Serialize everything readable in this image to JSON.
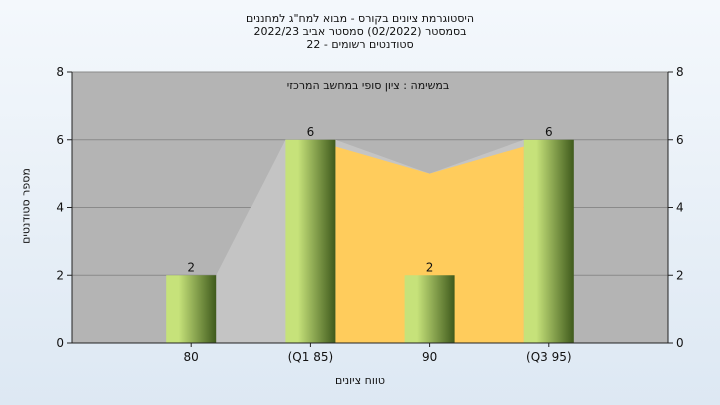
{
  "chart_data": {
    "type": "bar",
    "title_lines": [
      "היסטוגרמת ציונים בקורס - מבוא למח\"ג למחננים",
      "בסמסטר  (02/2022)  סמסטר אביב 2022/23",
      "סטודנטים רשומים - 22"
    ],
    "annotation": "במשימה : ציון סופי במחשב המרכזי",
    "xlabel": "טווח ציונים",
    "ylabel": "מספר סטודנטים",
    "categories": [
      "80",
      "(Q1 85)",
      "90",
      "(Q3 95)"
    ],
    "values": [
      2,
      6,
      2,
      6
    ],
    "data_labels": [
      "2",
      "6",
      "2",
      "6"
    ],
    "y_ticks": [
      "0",
      "2",
      "4",
      "6",
      "8"
    ],
    "ylim": [
      0,
      8
    ],
    "grid": true,
    "colors": {
      "plot_bg": "#b4b4b4",
      "bar_light": "#c6e27a",
      "bar_dark": "#3f5a1c",
      "iqr_area": "#ffcc5c",
      "trend_area": "#c4c4c4"
    }
  }
}
